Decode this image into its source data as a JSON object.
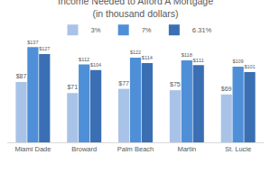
{
  "chart_data": {
    "type": "bar",
    "title": "Income Needed to Afford A Mortgage",
    "subtitle": "(in thousand dollars)",
    "categories": [
      "Miami Dade",
      "Broward",
      "Palm Beach",
      "Martin",
      "St. Lucie"
    ],
    "series": [
      {
        "name": "3%",
        "color": "#a9c3e8",
        "values": [
          87,
          71,
          77,
          75,
          69
        ],
        "value_labels": [
          "$87",
          "$71",
          "$77",
          "$75",
          "$69"
        ]
      },
      {
        "name": "7%",
        "color": "#4f8fd8",
        "values": [
          137,
          112,
          122,
          118,
          109
        ],
        "value_labels": [
          "$137",
          "$112",
          "$122",
          "$118",
          "$109"
        ]
      },
      {
        "name": "6.31%",
        "color": "#3b6fb3",
        "values": [
          127,
          104,
          114,
          111,
          101
        ],
        "value_labels": [
          "$127",
          "$104",
          "$114",
          "$111",
          "$101"
        ]
      }
    ],
    "ylim": [
      0,
      140
    ],
    "grid": false,
    "legend": "top",
    "data_labels": true,
    "tick_labels": "x"
  }
}
